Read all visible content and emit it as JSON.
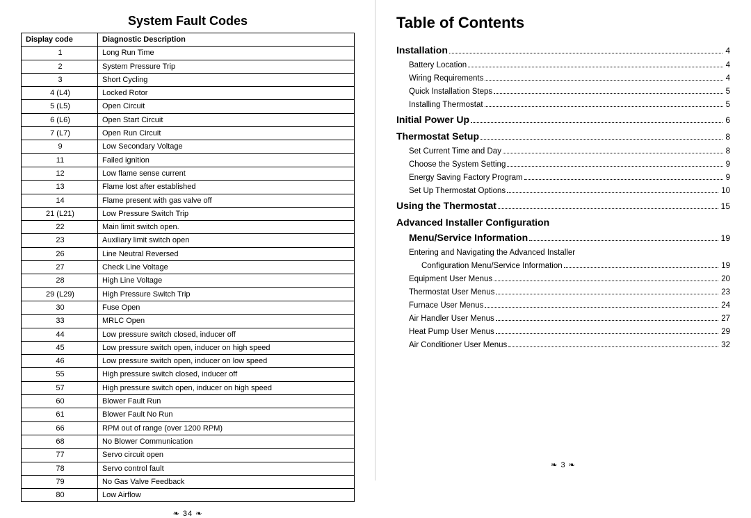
{
  "left": {
    "title": "System Fault Codes",
    "columns": [
      "Display code",
      "Diagnostic Description"
    ],
    "rows": [
      [
        "1",
        "Long Run Time"
      ],
      [
        "2",
        "System Pressure Trip"
      ],
      [
        "3",
        "Short Cycling"
      ],
      [
        "4 (L4)",
        "Locked Rotor"
      ],
      [
        "5 (L5)",
        "Open Circuit"
      ],
      [
        "6 (L6)",
        "Open Start Circuit"
      ],
      [
        "7 (L7)",
        "Open Run Circuit"
      ],
      [
        "9",
        "Low Secondary Voltage"
      ],
      [
        "11",
        "Failed ignition"
      ],
      [
        "12",
        "Low flame sense current"
      ],
      [
        "13",
        "Flame lost after established"
      ],
      [
        "14",
        "Flame present with gas valve off"
      ],
      [
        "21 (L21)",
        "Low Pressure Switch Trip"
      ],
      [
        "22",
        "Main limit switch open."
      ],
      [
        "23",
        "Auxiliary limit switch open"
      ],
      [
        "26",
        "Line Neutral Reversed"
      ],
      [
        "27",
        "Check Line Voltage"
      ],
      [
        "28",
        "High Line Voltage"
      ],
      [
        "29 (L29)",
        "High Pressure Switch Trip"
      ],
      [
        "30",
        "Fuse Open"
      ],
      [
        "33",
        "MRLC Open"
      ],
      [
        "44",
        "Low pressure switch closed, inducer off"
      ],
      [
        "45",
        "Low pressure switch open, inducer on high speed"
      ],
      [
        "46",
        "Low pressure switch open, inducer on low speed"
      ],
      [
        "55",
        "High pressure switch closed, inducer off"
      ],
      [
        "57",
        "High pressure switch open, inducer on high speed"
      ],
      [
        "60",
        "Blower Fault Run"
      ],
      [
        "61",
        "Blower Fault No Run"
      ],
      [
        "66",
        "RPM out of range (over 1200 RPM)"
      ],
      [
        "68",
        "No Blower Communication"
      ],
      [
        "77",
        "Servo circuit open"
      ],
      [
        "78",
        "Servo control fault"
      ],
      [
        "79",
        "No Gas Valve Feedback"
      ],
      [
        "80",
        "Low Airflow"
      ]
    ],
    "pagenum": "34"
  },
  "right": {
    "title": "Table of Contents",
    "entries": [
      {
        "level": "section",
        "label": "Installation",
        "page": "4"
      },
      {
        "level": "sub",
        "label": "Battery Location",
        "page": "4"
      },
      {
        "level": "sub",
        "label": "Wiring Requirements",
        "page": "4"
      },
      {
        "level": "sub",
        "label": "Quick Installation Steps",
        "page": "5"
      },
      {
        "level": "sub",
        "label": "Installing Thermostat",
        "page": "5"
      },
      {
        "level": "section",
        "label": "Initial Power Up",
        "page": "6"
      },
      {
        "level": "section",
        "label": "Thermostat Setup",
        "page": "8"
      },
      {
        "level": "sub",
        "label": "Set Current Time and Day",
        "page": "8"
      },
      {
        "level": "sub",
        "label": "Choose the System Setting",
        "page": "9"
      },
      {
        "level": "sub",
        "label": "Energy Saving Factory Program",
        "page": "9"
      },
      {
        "level": "sub",
        "label": "Set Up Thermostat Options",
        "page": "10"
      },
      {
        "level": "section",
        "label": "Using the Thermostat",
        "page": "15"
      },
      {
        "level": "section",
        "label": "Advanced Installer Configuration",
        "nopage": true,
        "tight": true
      },
      {
        "level": "section",
        "label": "Menu/Service Information",
        "page": "19",
        "indent": true
      },
      {
        "level": "sub",
        "label": "Entering and Navigating the Advanced Installer",
        "nopage": true
      },
      {
        "level": "subsub",
        "label": "Configuration Menu/Service Information",
        "page": "19"
      },
      {
        "level": "sub",
        "label": "Equipment User Menus",
        "page": "20"
      },
      {
        "level": "sub",
        "label": "Thermostat User Menus",
        "page": "23"
      },
      {
        "level": "sub",
        "label": "Furnace User Menus",
        "page": "24"
      },
      {
        "level": "sub",
        "label": "Air Handler User Menus",
        "page": "27"
      },
      {
        "level": "sub",
        "label": "Heat Pump User Menus",
        "page": "29"
      },
      {
        "level": "sub",
        "label": "Air Conditioner User Menus",
        "page": "32"
      }
    ],
    "pagenum": "3"
  },
  "glyph": {
    "pagedeco_left": "❧",
    "pagedeco_right": "❧"
  }
}
